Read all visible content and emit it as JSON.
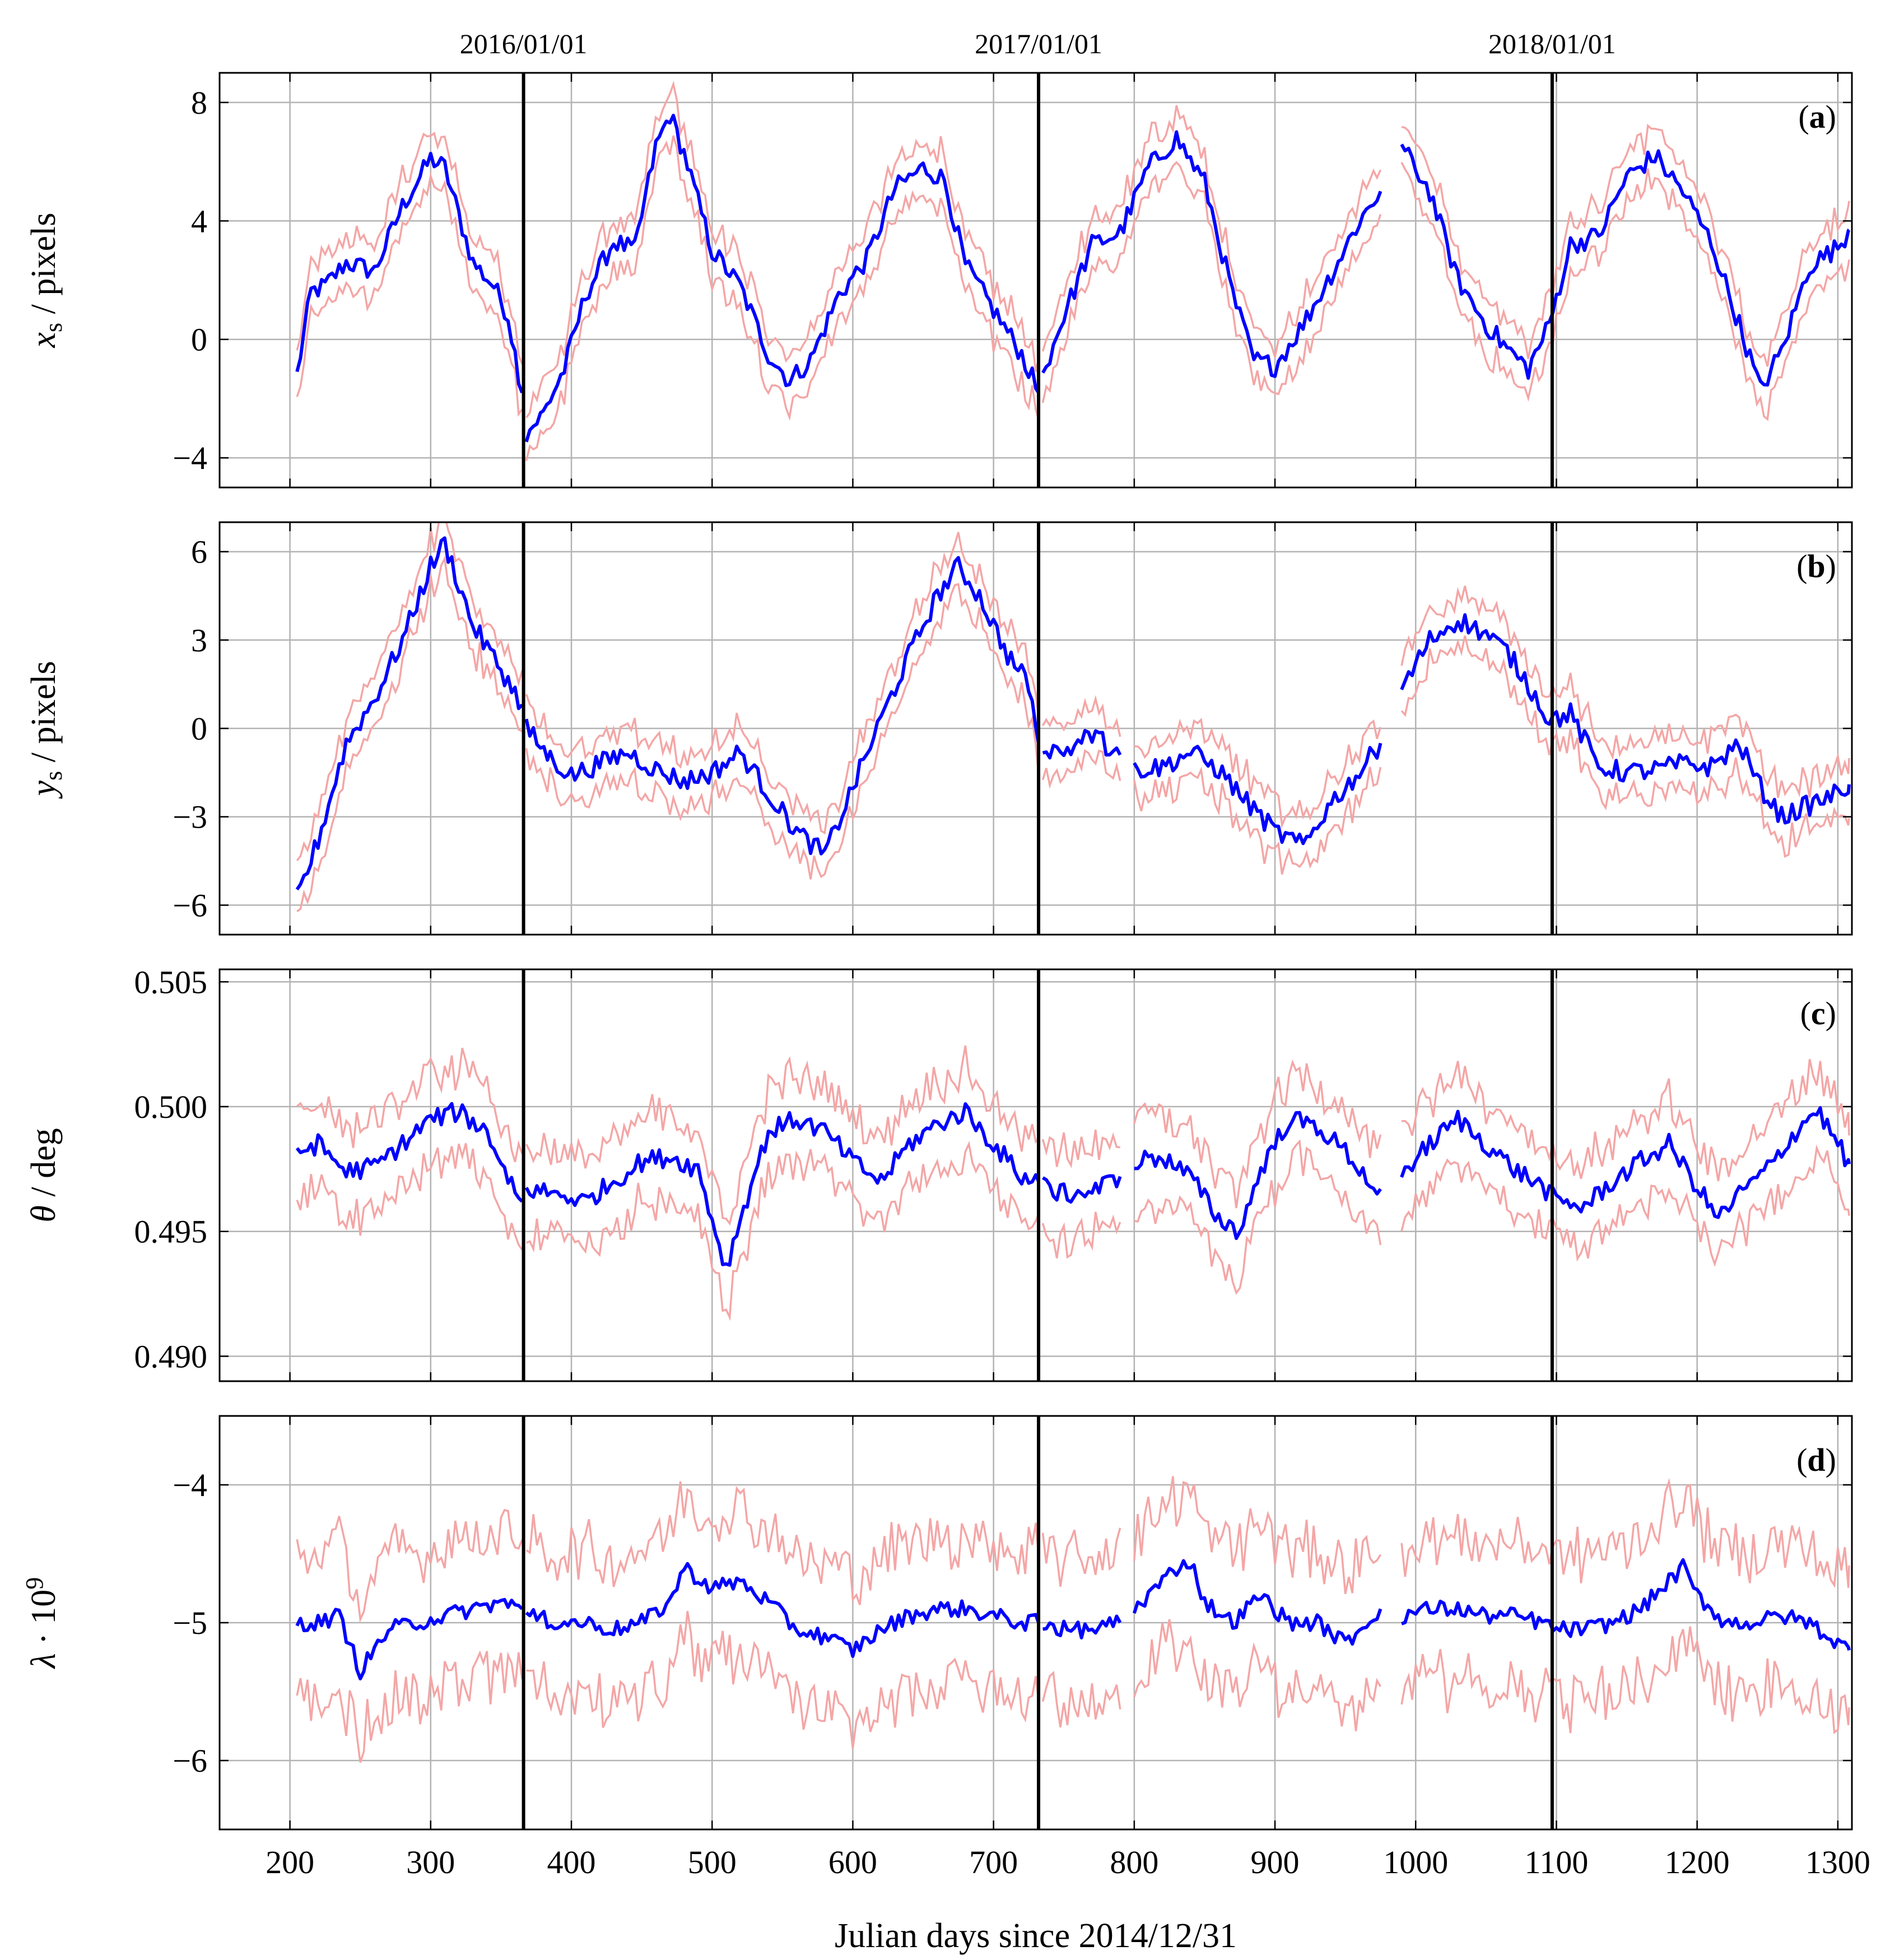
{
  "chart_data": {
    "type": "line",
    "xlabel": "Julian days since 2014/12/31",
    "xlim": [
      150,
      1310
    ],
    "xticks": [
      200,
      300,
      400,
      500,
      600,
      700,
      800,
      900,
      1000,
      1100,
      1200,
      1300
    ],
    "date_markers": [
      {
        "x": 366,
        "label": "2016/01/01"
      },
      {
        "x": 732,
        "label": "2017/01/01"
      },
      {
        "x": 1097,
        "label": "2018/01/01"
      }
    ],
    "series_styles": {
      "mean_color": "#0000ff",
      "band_color": "#f4a6a6"
    },
    "panels": [
      {
        "tag": "a",
        "ylabel_var": "x",
        "ylabel_sub": "s",
        "ylabel_unit": " / pixels",
        "ylim": [
          -5,
          9
        ],
        "yticks": [
          -4,
          0,
          4,
          8
        ],
        "ytick_labels": [
          "−4",
          "0",
          "4",
          "8"
        ],
        "noise": 0.35,
        "band": 0.9,
        "segments": [
          {
            "x": [
              205,
              215,
              225,
              240,
              260,
              280,
              300,
              310,
              330,
              345,
              355,
              365
            ],
            "y": [
              -1.2,
              1.6,
              1.8,
              2.6,
              2.3,
              4.5,
              6.1,
              5.8,
              2.6,
              1.8,
              0.8,
              -1.8
            ]
          },
          {
            "x": [
              368,
              380,
              395,
              410,
              430,
              445,
              460,
              470,
              480,
              500,
              520,
              540,
              555,
              570,
              590,
              610,
              630,
              650,
              665,
              680,
              700,
              720,
              732
            ],
            "y": [
              -3.2,
              -2.5,
              -1.0,
              1.5,
              3.3,
              3.0,
              6.5,
              7.6,
              6.3,
              3.0,
              1.8,
              -0.5,
              -1.4,
              -0.7,
              1.5,
              2.7,
              5.1,
              5.8,
              5.4,
              2.5,
              1.0,
              -0.5,
              -1.8
            ]
          },
          {
            "x": [
              735,
              750,
              770,
              790,
              810,
              830,
              850,
              870,
              885,
              900,
              920,
              940,
              960,
              975
            ],
            "y": [
              -1.2,
              0.8,
              3.2,
              3.6,
              5.8,
              6.8,
              5.3,
              1.5,
              -0.7,
              -0.9,
              0.5,
              2.2,
              4.0,
              5.0
            ]
          },
          {
            "x": [
              990,
              1010,
              1030,
              1050,
              1065,
              1080,
              1095,
              1110,
              1130,
              1150,
              1170,
              1190,
              1210,
              1230,
              1245,
              1260,
              1280,
              1300,
              1308
            ],
            "y": [
              6.5,
              5.0,
              2.0,
              0.5,
              -0.3,
              -1.0,
              0.5,
              3.2,
              3.5,
              5.5,
              6.2,
              5.0,
              3.3,
              0.5,
              -1.7,
              -0.4,
              2.5,
              3.1,
              3.7
            ]
          }
        ]
      },
      {
        "tag": "b",
        "ylabel_var": "y",
        "ylabel_sub": "s",
        "ylabel_unit": " / pixels",
        "ylim": [
          -7,
          7
        ],
        "yticks": [
          -6,
          -3,
          0,
          3,
          6
        ],
        "ytick_labels": [
          "−6",
          "−3",
          "0",
          "3",
          "6"
        ],
        "noise": 0.35,
        "band": 0.9,
        "segments": [
          {
            "x": [
              205,
              220,
              240,
              260,
              280,
              300,
              310,
              330,
              350,
              365
            ],
            "y": [
              -5.8,
              -3.8,
              -0.5,
              1.0,
              3.0,
              5.5,
              6.3,
              3.5,
              2.0,
              0.8
            ]
          },
          {
            "x": [
              368,
              385,
              400,
              420,
              440,
              460,
              480,
              500,
              520,
              540,
              560,
              580,
              600,
              620,
              640,
              660,
              675,
              690,
              710,
              725,
              732
            ],
            "y": [
              0.0,
              -1.0,
              -1.6,
              -1.2,
              -0.8,
              -1.4,
              -1.8,
              -1.5,
              -0.8,
              -2.2,
              -3.5,
              -4.3,
              -2.0,
              0.3,
              2.5,
              4.5,
              5.5,
              4.5,
              2.5,
              1.5,
              -0.5
            ]
          },
          {
            "x": [
              735,
              750,
              770,
              790
            ],
            "y": [
              -0.6,
              -0.8,
              -0.2,
              -0.9
            ]
          },
          {
            "x": [
              800,
              820,
              840,
              860,
              880,
              900,
              920,
              940,
              960,
              975
            ],
            "y": [
              -1.4,
              -1.3,
              -0.8,
              -1.4,
              -2.5,
              -3.5,
              -4.0,
              -2.5,
              -1.5,
              -0.5
            ]
          },
          {
            "x": [
              990,
              1010,
              1030,
              1050,
              1065,
              1080,
              1095,
              1110,
              1130,
              1150,
              1170,
              1190,
              1210,
              1230,
              1245,
              1260,
              1280,
              1300,
              1308
            ],
            "y": [
              1.3,
              3.0,
              3.7,
              3.2,
              2.6,
              1.5,
              0.3,
              0.5,
              -1.3,
              -1.5,
              -1.4,
              -1.2,
              -1.3,
              -0.5,
              -2.0,
              -3.0,
              -2.6,
              -2.2,
              -1.9
            ]
          }
        ]
      },
      {
        "tag": "c",
        "ylabel_var": "θ",
        "ylabel_sub": "",
        "ylabel_unit": " / deg",
        "ylim": [
          0.489,
          0.5055
        ],
        "yticks": [
          0.49,
          0.495,
          0.5,
          0.505
        ],
        "ytick_labels": [
          "0.490",
          "0.495",
          "0.500",
          "0.505"
        ],
        "noise": 0.0004,
        "band": 0.0018,
        "segments": [
          {
            "x": [
              205,
              220,
              240,
              260,
              280,
              300,
              320,
              340,
              355,
              365
            ],
            "y": [
              0.4982,
              0.4985,
              0.4974,
              0.4976,
              0.4985,
              0.4995,
              0.4998,
              0.499,
              0.4972,
              0.4962
            ]
          },
          {
            "x": [
              368,
              390,
              410,
              430,
              450,
              470,
              490,
              510,
              520,
              540,
              560,
              580,
              600,
              620,
              640,
              660,
              680,
              700,
              720,
              732
            ],
            "y": [
              0.4967,
              0.4965,
              0.4962,
              0.497,
              0.4978,
              0.498,
              0.4975,
              0.4935,
              0.4955,
              0.499,
              0.4995,
              0.499,
              0.4978,
              0.497,
              0.4985,
              0.4993,
              0.4998,
              0.4985,
              0.4972,
              0.497
            ]
          },
          {
            "x": [
              735,
              750,
              770,
              790
            ],
            "y": [
              0.4968,
              0.4965,
              0.4966,
              0.4972
            ]
          },
          {
            "x": [
              800,
              820,
              840,
              860,
              875,
              890,
              910,
              930,
              950,
              970,
              975
            ],
            "y": [
              0.4978,
              0.498,
              0.4972,
              0.4955,
              0.495,
              0.4975,
              0.4995,
              0.4992,
              0.4982,
              0.4968,
              0.4967
            ]
          },
          {
            "x": [
              990,
              1010,
              1030,
              1050,
              1070,
              1090,
              1100,
              1120,
              1140,
              1160,
              1180,
              1200,
              1215,
              1230,
              1250,
              1270,
              1285,
              1300,
              1308
            ],
            "y": [
              0.4973,
              0.4985,
              0.4995,
              0.4985,
              0.4975,
              0.4968,
              0.4962,
              0.496,
              0.497,
              0.4978,
              0.4985,
              0.4968,
              0.4955,
              0.4965,
              0.4975,
              0.499,
              0.4999,
              0.4985,
              0.4977
            ]
          }
        ]
      },
      {
        "tag": "d",
        "ylabel_var": "λ",
        "ylabel_sub": "",
        "ylabel_unit": " · 10",
        "ylabel_sup": "9",
        "ylim": [
          -6.5,
          -3.5
        ],
        "yticks": [
          -6,
          -5,
          -4
        ],
        "ytick_labels": [
          "−6",
          "−5",
          "−4"
        ],
        "noise": 0.06,
        "band": 0.55,
        "segments": [
          {
            "x": [
              205,
              220,
              235,
              250,
              270,
              290,
              310,
              330,
              350,
              365
            ],
            "y": [
              -5.0,
              -5.0,
              -4.95,
              -5.35,
              -5.05,
              -5.0,
              -4.95,
              -4.9,
              -4.85,
              -4.9
            ]
          },
          {
            "x": [
              368,
              390,
              410,
              430,
              450,
              470,
              480,
              500,
              520,
              540,
              560,
              580,
              600,
              620,
              640,
              660,
              680,
              700,
              720,
              732
            ],
            "y": [
              -4.95,
              -5.0,
              -5.0,
              -5.05,
              -5.0,
              -4.85,
              -4.6,
              -4.75,
              -4.7,
              -4.85,
              -5.05,
              -5.1,
              -5.2,
              -5.05,
              -4.95,
              -4.9,
              -4.9,
              -4.95,
              -5.0,
              -5.0
            ]
          },
          {
            "x": [
              735,
              750,
              770,
              790
            ],
            "y": [
              -5.0,
              -5.05,
              -5.05,
              -5.0
            ]
          },
          {
            "x": [
              800,
              815,
              830,
              840,
              850,
              870,
              890,
              910,
              930,
              950,
              960,
              975
            ],
            "y": [
              -4.9,
              -4.75,
              -4.6,
              -4.55,
              -4.85,
              -5.0,
              -4.8,
              -5.0,
              -5.0,
              -5.15,
              -5.05,
              -4.9
            ]
          },
          {
            "x": [
              990,
              1010,
              1030,
              1050,
              1070,
              1090,
              1100,
              1120,
              1140,
              1160,
              1180,
              1190,
              1200,
              1220,
              1240,
              1260,
              1280,
              1300,
              1308
            ],
            "y": [
              -4.95,
              -4.9,
              -4.9,
              -4.95,
              -4.95,
              -5.0,
              -5.05,
              -5.05,
              -5.0,
              -4.9,
              -4.7,
              -4.6,
              -4.8,
              -5.0,
              -5.0,
              -4.95,
              -5.0,
              -5.15,
              -5.2
            ]
          }
        ]
      }
    ]
  }
}
